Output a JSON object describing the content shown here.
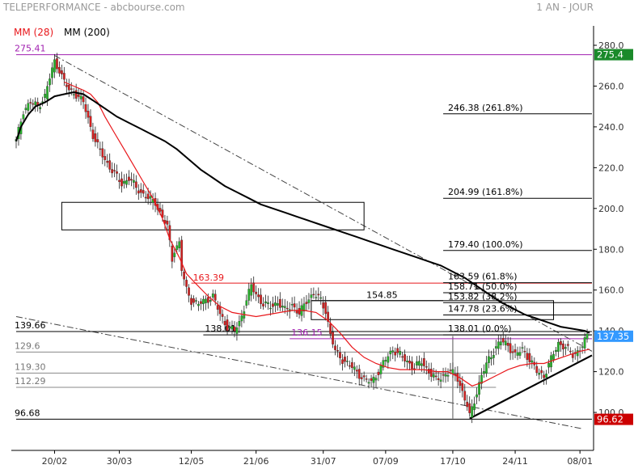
{
  "header": {
    "title": "TELEPERFORMANCE - abcbourse.com",
    "period": "1 AN - JOUR"
  },
  "legend": {
    "ma28_label": "MM (28)",
    "ma200_label": "MM (200)"
  },
  "colors": {
    "ma28": "#e8171b",
    "ma200": "#000000",
    "candle_up": "#27b52b",
    "candle_down": "#d42020",
    "magenta": "#a11fb0",
    "last_price_bg": "#3399ff",
    "high_bg": "#1a8a2a",
    "low_bg": "#cc0000",
    "grid": "#dddddd"
  },
  "chart_data": {
    "type": "candlestick",
    "y_range": [
      88,
      288
    ],
    "y_ticks": [
      {
        "value": 280,
        "label": "280.0"
      },
      {
        "value": 260,
        "label": "260.0"
      },
      {
        "value": 240,
        "label": "240.0"
      },
      {
        "value": 220,
        "label": "220.0"
      },
      {
        "value": 200,
        "label": "200.0"
      },
      {
        "value": 180,
        "label": "180.0"
      },
      {
        "value": 160,
        "label": "160.0"
      },
      {
        "value": 140,
        "label": "140.0"
      },
      {
        "value": 120,
        "label": "120.0"
      },
      {
        "value": 100,
        "label": "100.0"
      }
    ],
    "x_range": [
      0,
      240
    ],
    "x_ticks": [
      {
        "label": "20/02",
        "t": 16
      },
      {
        "label": "30/03",
        "t": 43
      },
      {
        "label": "12/05",
        "t": 73
      },
      {
        "label": "21/06",
        "t": 100
      },
      {
        "label": "31/07",
        "t": 128
      },
      {
        "label": "07/09",
        "t": 154
      },
      {
        "label": "17/10",
        "t": 182
      },
      {
        "label": "24/11",
        "t": 208
      },
      {
        "label": "08/01",
        "t": 235
      }
    ],
    "price_path": [
      [
        0,
        233
      ],
      [
        3,
        248
      ],
      [
        6,
        252
      ],
      [
        9,
        250
      ],
      [
        12,
        255
      ],
      [
        14,
        264
      ],
      [
        16,
        272
      ],
      [
        18,
        268
      ],
      [
        20,
        262
      ],
      [
        22,
        258
      ],
      [
        25,
        256
      ],
      [
        28,
        252
      ],
      [
        30,
        244
      ],
      [
        32,
        236
      ],
      [
        35,
        228
      ],
      [
        38,
        222
      ],
      [
        41,
        217
      ],
      [
        44,
        212
      ],
      [
        47,
        215
      ],
      [
        50,
        210
      ],
      [
        53,
        207
      ],
      [
        56,
        204
      ],
      [
        58,
        203
      ],
      [
        60,
        198
      ],
      [
        63,
        191
      ],
      [
        65,
        175
      ],
      [
        66,
        180
      ],
      [
        68,
        183
      ],
      [
        69,
        170
      ],
      [
        71,
        160
      ],
      [
        73,
        155
      ],
      [
        76,
        153
      ],
      [
        79,
        155
      ],
      [
        82,
        157
      ],
      [
        85,
        148
      ],
      [
        88,
        142
      ],
      [
        91,
        140
      ],
      [
        93,
        144
      ],
      [
        96,
        155
      ],
      [
        98,
        162
      ],
      [
        100,
        158
      ],
      [
        103,
        153
      ],
      [
        106,
        152
      ],
      [
        109,
        154
      ],
      [
        112,
        150
      ],
      [
        115,
        153
      ],
      [
        118,
        148
      ],
      [
        121,
        155
      ],
      [
        124,
        158
      ],
      [
        127,
        155
      ],
      [
        129,
        150
      ],
      [
        131,
        138
      ],
      [
        133,
        130
      ],
      [
        136,
        126
      ],
      [
        139,
        123
      ],
      [
        142,
        120
      ],
      [
        145,
        116
      ],
      [
        148,
        115
      ],
      [
        151,
        120
      ],
      [
        154,
        126
      ],
      [
        157,
        131
      ],
      [
        160,
        128
      ],
      [
        163,
        125
      ],
      [
        166,
        122
      ],
      [
        169,
        125
      ],
      [
        172,
        120
      ],
      [
        175,
        116
      ],
      [
        178,
        118
      ],
      [
        181,
        120
      ],
      [
        184,
        117
      ],
      [
        186,
        110
      ],
      [
        188,
        103
      ],
      [
        189,
        98
      ],
      [
        191,
        106
      ],
      [
        194,
        118
      ],
      [
        197,
        126
      ],
      [
        200,
        132
      ],
      [
        202,
        135
      ],
      [
        205,
        133
      ],
      [
        208,
        128
      ],
      [
        211,
        131
      ],
      [
        214,
        126
      ],
      [
        217,
        120
      ],
      [
        220,
        118
      ],
      [
        223,
        126
      ],
      [
        226,
        134
      ],
      [
        229,
        132
      ],
      [
        232,
        128
      ],
      [
        235,
        131
      ],
      [
        238,
        137
      ]
    ],
    "ma28": [
      [
        20,
        262
      ],
      [
        24,
        260
      ],
      [
        28,
        258
      ],
      [
        31,
        256
      ],
      [
        34,
        252
      ],
      [
        37,
        245
      ],
      [
        41,
        237
      ],
      [
        45,
        229
      ],
      [
        49,
        221
      ],
      [
        53,
        213
      ],
      [
        57,
        205
      ],
      [
        61,
        195
      ],
      [
        64,
        185
      ],
      [
        68,
        176
      ],
      [
        71,
        168
      ],
      [
        75,
        163
      ],
      [
        80,
        157
      ],
      [
        85,
        152
      ],
      [
        90,
        149
      ],
      [
        95,
        148
      ],
      [
        100,
        147
      ],
      [
        105,
        148
      ],
      [
        110,
        149
      ],
      [
        115,
        150
      ],
      [
        120,
        150
      ],
      [
        125,
        149
      ],
      [
        130,
        145
      ],
      [
        135,
        139
      ],
      [
        140,
        132
      ],
      [
        145,
        127
      ],
      [
        150,
        124
      ],
      [
        155,
        122
      ],
      [
        160,
        121
      ],
      [
        165,
        121
      ],
      [
        170,
        121
      ],
      [
        175,
        120
      ],
      [
        180,
        120
      ],
      [
        185,
        117
      ],
      [
        190,
        113
      ],
      [
        195,
        115
      ],
      [
        200,
        118
      ],
      [
        205,
        121
      ],
      [
        210,
        123
      ],
      [
        215,
        124
      ],
      [
        220,
        124
      ],
      [
        225,
        126
      ],
      [
        230,
        128
      ],
      [
        235,
        130
      ],
      [
        239,
        131
      ]
    ],
    "ma200": [
      [
        0,
        233
      ],
      [
        2,
        240
      ],
      [
        5,
        246
      ],
      [
        8,
        250
      ],
      [
        12,
        252
      ],
      [
        16,
        255
      ],
      [
        20,
        256
      ],
      [
        24,
        257
      ],
      [
        28,
        256
      ],
      [
        32,
        253
      ],
      [
        37,
        249
      ],
      [
        42,
        245
      ],
      [
        47,
        242
      ],
      [
        52,
        239
      ],
      [
        57,
        236
      ],
      [
        62,
        233
      ],
      [
        67,
        229
      ],
      [
        72,
        224
      ],
      [
        77,
        219
      ],
      [
        82,
        215
      ],
      [
        87,
        211
      ],
      [
        92,
        208
      ],
      [
        97,
        205
      ],
      [
        102,
        202
      ],
      [
        107,
        200
      ],
      [
        112,
        198
      ],
      [
        117,
        196
      ],
      [
        122,
        194
      ],
      [
        127,
        192
      ],
      [
        132,
        190
      ],
      [
        137,
        188
      ],
      [
        142,
        186
      ],
      [
        147,
        184
      ],
      [
        152,
        182
      ],
      [
        157,
        180
      ],
      [
        162,
        178
      ],
      [
        167,
        176
      ],
      [
        172,
        174
      ],
      [
        177,
        172
      ],
      [
        182,
        169
      ],
      [
        187,
        166
      ],
      [
        192,
        162
      ],
      [
        197,
        158
      ],
      [
        202,
        154
      ],
      [
        207,
        151
      ],
      [
        212,
        148
      ],
      [
        217,
        146
      ],
      [
        222,
        144
      ],
      [
        227,
        142
      ],
      [
        232,
        141
      ],
      [
        237,
        140
      ],
      [
        239,
        139
      ]
    ],
    "fibonacci": [
      {
        "value": 246.38,
        "pct": "261.8%",
        "label": "246.38  (261.8%)"
      },
      {
        "value": 204.99,
        "pct": "161.8%",
        "label": "204.99  (161.8%)"
      },
      {
        "value": 179.4,
        "pct": "100.0%",
        "label": "179.40  (100.0%)"
      },
      {
        "value": 163.59,
        "pct": "61.8%",
        "label": "163.59  (61.8%)"
      },
      {
        "value": 158.71,
        "pct": "50.0%",
        "label": "158.71  (50.0%)"
      },
      {
        "value": 153.82,
        "pct": "38.2%",
        "label": "153.82  (38.2%)"
      },
      {
        "value": 147.78,
        "pct": "23.6%",
        "label": "147.78  (23.6%)"
      },
      {
        "value": 138.01,
        "pct": "0.0%",
        "label": "138.01  (0.0%)"
      }
    ],
    "horizontal_levels": [
      {
        "value": 275.41,
        "label": "275.41",
        "color": "magenta"
      },
      {
        "value": 163.39,
        "label": "163.39",
        "color": "red"
      },
      {
        "value": 154.85,
        "label": "154.85",
        "color": "black"
      },
      {
        "value": 139.66,
        "label": "139.66",
        "color": "black"
      },
      {
        "value": 138.01,
        "label": "138.01",
        "color": "black"
      },
      {
        "value": 136.15,
        "label": "136.15",
        "color": "magenta"
      },
      {
        "value": 129.6,
        "label": "129.6",
        "color": "gray"
      },
      {
        "value": 119.3,
        "label": "119.30",
        "color": "gray"
      },
      {
        "value": 112.29,
        "label": "112.29",
        "color": "gray"
      },
      {
        "value": 96.68,
        "label": "96.68",
        "color": "black"
      }
    ],
    "price_tags": [
      {
        "value": 275.4,
        "label": "275.4",
        "kind": "high"
      },
      {
        "value": 137.35,
        "label": "137.35",
        "kind": "last"
      },
      {
        "value": 96.62,
        "label": "96.62",
        "kind": "low"
      }
    ]
  }
}
